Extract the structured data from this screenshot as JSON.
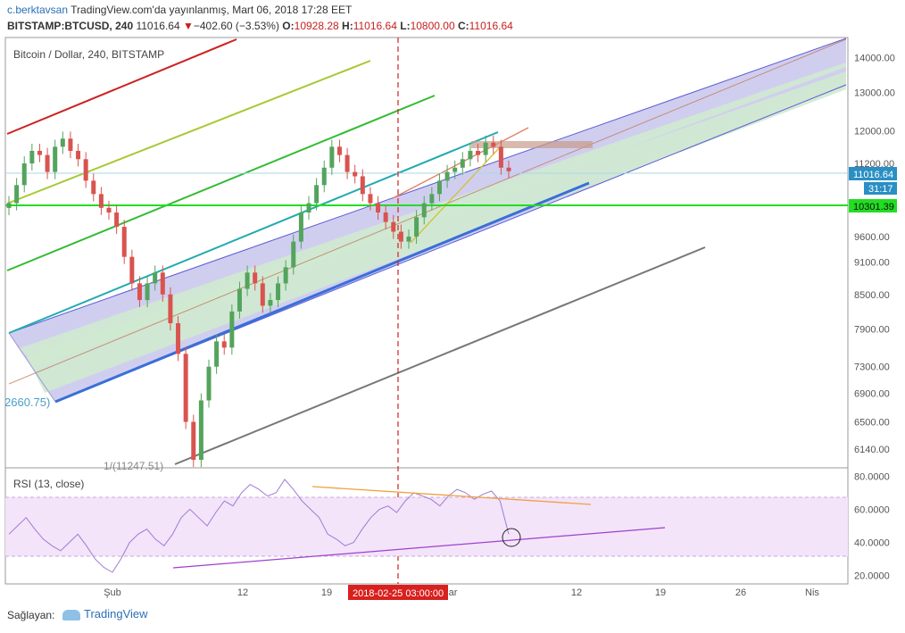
{
  "header": {
    "author": "c.berktavsan",
    "published": "TradingView.com'da yayınlanmış, Mart 06, 2018 17:28 EET",
    "symbol": "BITSTAMP:BTCUSD, 240",
    "last": "11016.64",
    "change": "−402.60 (−3.53%)",
    "o_label": "O:",
    "o_value": "10928.28",
    "h_label": "H:",
    "h_value": "11016.64",
    "l_label": "L:",
    "l_value": "10800.00",
    "c_label": "C:",
    "c_value": "11016.64"
  },
  "price_pane": {
    "title": "Bitcoin / Dollar, 240, BITSTAMP",
    "y_ticks": [
      "14000.00",
      "13000.00",
      "12000.00",
      "11200.00",
      "10301.39",
      "9600.00",
      "9100.00",
      "8500.00",
      "7900.00",
      "7300.00",
      "6900.00",
      "6500.00",
      "6140.00"
    ],
    "last_price_badge": "11016.64",
    "countdown_badge": "31:17",
    "hline_badge": "10301.39",
    "annotation_left": "2660.75)",
    "annotation_bottom": "1/(11247.51)"
  },
  "rsi_pane": {
    "title": "RSI (13, close)",
    "y_ticks": [
      "80.0000",
      "60.0000",
      "40.0000",
      "20.0000"
    ]
  },
  "x_axis": {
    "ticks": [
      "Şub",
      "12",
      "19",
      "Mar",
      "12",
      "19",
      "26",
      "Nis"
    ],
    "crosshair_label": "2018-02-25 03:00:00"
  },
  "footer": {
    "label": "Sağlayan:",
    "brand": "TradingView"
  },
  "colors": {
    "up": "#53a45c",
    "down": "#d9534f",
    "channel_blue": "#3a6fd8",
    "channel_fill_blue": "#c8c6ec",
    "channel_fill_green": "#cfead0",
    "hline": "#22dd22",
    "rsi_band": "#f3e4fa",
    "rsi_line": "#a07ad0",
    "crosshair": "#d02020"
  },
  "chart_data": {
    "type": "candlestick",
    "title": "Bitcoin / Dollar, 240, BITSTAMP",
    "ylabel": "USD",
    "ylim": [
      5900,
      14600
    ],
    "y_scale": "log",
    "last_price": 11016.64,
    "horizontal_level": 10301.39,
    "closes_approx": [
      10300,
      10700,
      11200,
      11500,
      11400,
      11000,
      11600,
      11800,
      11500,
      11300,
      10800,
      10500,
      10200,
      10100,
      9800,
      9200,
      8700,
      8400,
      8700,
      8900,
      8500,
      8000,
      7500,
      6500,
      6000,
      6800,
      7300,
      7700,
      7600,
      8200,
      8600,
      8900,
      8700,
      8300,
      8400,
      8700,
      9000,
      9500,
      10100,
      10300,
      10700,
      11100,
      11600,
      11400,
      11000,
      10900,
      10500,
      10300,
      10100,
      9900,
      9700,
      9500,
      9600,
      10000,
      10300,
      10500,
      10800,
      11000,
      11100,
      11300,
      11500,
      11400,
      11700,
      11600,
      11100,
      11016.64
    ],
    "rsi": {
      "name": "RSI (13, close)",
      "ylim": [
        15,
        85
      ],
      "values_approx": [
        45,
        50,
        55,
        48,
        42,
        38,
        35,
        40,
        45,
        38,
        30,
        25,
        22,
        30,
        40,
        45,
        48,
        42,
        38,
        45,
        55,
        60,
        55,
        50,
        58,
        65,
        62,
        70,
        75,
        72,
        68,
        70,
        78,
        72,
        65,
        60,
        55,
        45,
        42,
        38,
        40,
        48,
        55,
        60,
        62,
        58,
        65,
        70,
        68,
        66,
        62,
        68,
        72,
        70,
        66,
        69,
        71,
        65,
        45
      ]
    },
    "x_ticks": [
      "Şub",
      "12",
      "19",
      "Mar",
      "12",
      "19",
      "26",
      "Nis"
    ]
  }
}
